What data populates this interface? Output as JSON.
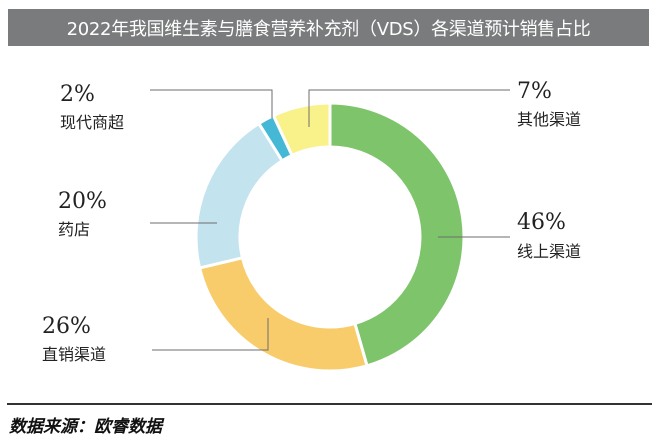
{
  "colors": {
    "title_bg": "#7a7b7c",
    "title_text": "#ffffff"
  },
  "chart_data": {
    "type": "pie",
    "title": "2022年我国维生素与膳食营养补充剂（VDS）各渠道预计销售占比",
    "style": "donut",
    "slices": [
      {
        "label": "线上渠道",
        "value": 46,
        "value_label": "46%",
        "color": "#7ec46b"
      },
      {
        "label": "直销渠道",
        "value": 26,
        "value_label": "26%",
        "color": "#f8cc6a"
      },
      {
        "label": "药店",
        "value": 20,
        "value_label": "20%",
        "color": "#c3e3ee"
      },
      {
        "label": "现代商超",
        "value": 2,
        "value_label": "2%",
        "color": "#45b8d6"
      },
      {
        "label": "其他渠道",
        "value": 7,
        "value_label": "7%",
        "color": "#f9f28a"
      }
    ]
  },
  "footer": {
    "source": "数据来源：欧睿数据"
  }
}
